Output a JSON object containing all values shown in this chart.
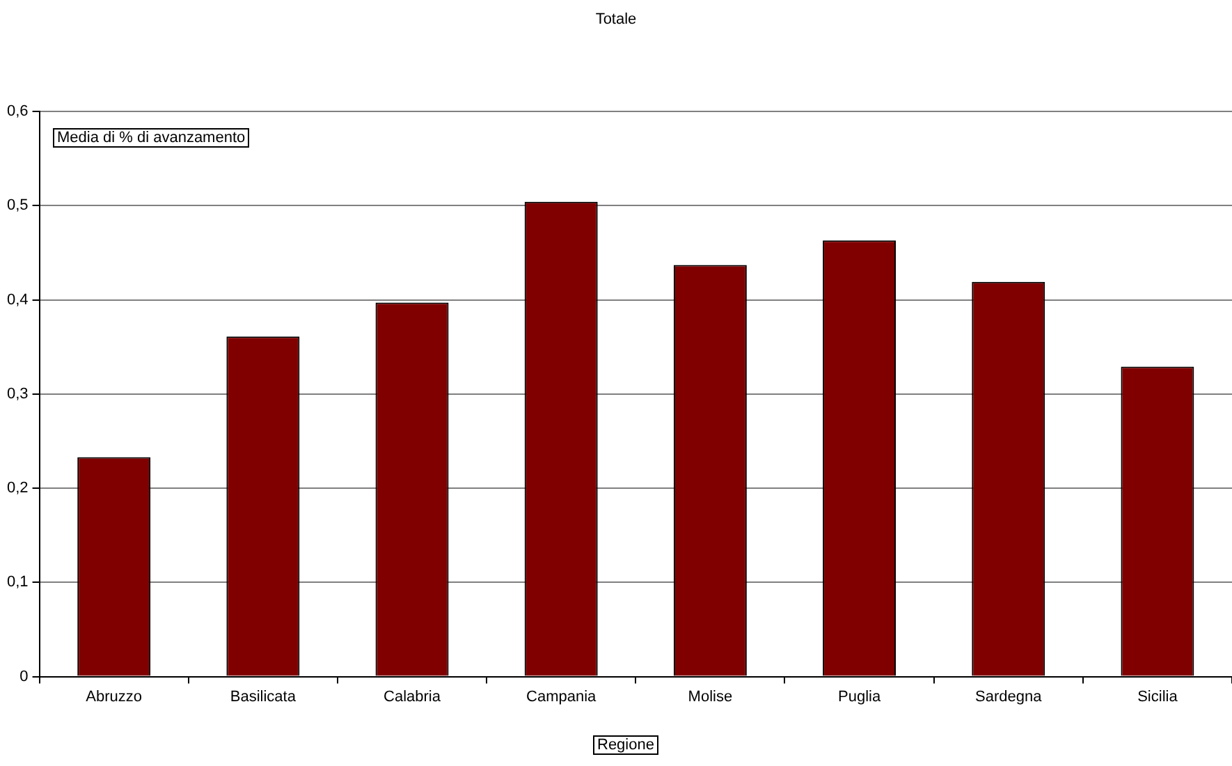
{
  "chart_data": {
    "type": "bar",
    "title": "Totale",
    "xlabel": "Regione",
    "ylabel": "Media di % di avanzamento",
    "categories": [
      "Abruzzo",
      "Basilicata",
      "Calabria",
      "Campania",
      "Molise",
      "Puglia",
      "Sardegna",
      "Sicilia"
    ],
    "values": [
      0.233,
      0.361,
      0.397,
      0.504,
      0.437,
      0.463,
      0.419,
      0.329
    ],
    "color": "#800000",
    "ylim": [
      0,
      0.6
    ],
    "yticks": [
      0,
      {
        "value": 0.1,
        "label": "0,1"
      },
      {
        "value": 0.2,
        "label": "0,2"
      },
      {
        "value": 0.3,
        "label": "0,3"
      },
      {
        "value": 0.4,
        "label": "0,4"
      },
      {
        "value": 0.5,
        "label": "0,5"
      },
      {
        "value": 0.6,
        "label": "0,6"
      }
    ],
    "grid": "y",
    "legend": false
  }
}
